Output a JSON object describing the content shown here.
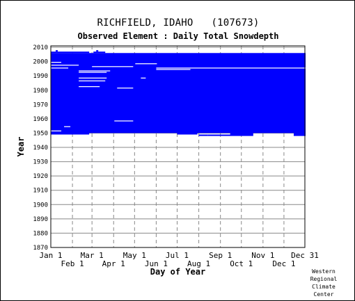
{
  "title": "RICHFIELD, IDAHO   (107673)",
  "subtitle": "Observed Element : Daily Total Snowdepth",
  "credit": [
    "Western",
    "Regional",
    "Climate",
    "Center"
  ],
  "chart_data": {
    "type": "heatmap",
    "title": "RICHFIELD, IDAHO   (107673)",
    "subtitle": "Observed Element : Daily Total Snowdepth",
    "xlabel": "Day of Year",
    "ylabel": "Year",
    "xlim": [
      1,
      365
    ],
    "ylim": [
      1870,
      2011
    ],
    "grid": true,
    "series_color": "#0000ff",
    "y_ticks": [
      1870,
      1880,
      1890,
      1900,
      1910,
      1920,
      1930,
      1940,
      1950,
      1960,
      1970,
      1980,
      1990,
      2000,
      2010
    ],
    "x_ticks_upper": [
      {
        "label": "Jan 1",
        "day": 1
      },
      {
        "label": "Mar 1",
        "day": 60
      },
      {
        "label": "May 1",
        "day": 121
      },
      {
        "label": "Jul 1",
        "day": 182
      },
      {
        "label": "Sep 1",
        "day": 244
      },
      {
        "label": "Nov 1",
        "day": 305
      },
      {
        "label": "Dec 31",
        "day": 365
      }
    ],
    "x_ticks_lower": [
      {
        "label": "Feb 1",
        "day": 32
      },
      {
        "label": "Apr 1",
        "day": 91
      },
      {
        "label": "Jun 1",
        "day": 152
      },
      {
        "label": "Aug 1",
        "day": 213
      },
      {
        "label": "Oct 1",
        "day": 274
      },
      {
        "label": "Dec 1",
        "day": 335
      }
    ],
    "observed_blocks": [
      {
        "year_start": 1950,
        "year_end": 2005,
        "day_start": 1,
        "day_end": 365
      }
    ],
    "missing_gaps": [
      {
        "year": 1999,
        "day_start": 1,
        "day_end": 15
      },
      {
        "year": 1997,
        "day_start": 1,
        "day_end": 40
      },
      {
        "year": 1996,
        "day_start": 60,
        "day_end": 118
      },
      {
        "year": 1995,
        "day_start": 1,
        "day_end": 25
      },
      {
        "year": 1993,
        "day_start": 41,
        "day_end": 85
      },
      {
        "year": 1992,
        "day_start": 41,
        "day_end": 80
      },
      {
        "year": 1988,
        "day_start": 41,
        "day_end": 80
      },
      {
        "year": 1986,
        "day_start": 41,
        "day_end": 78
      },
      {
        "year": 1982,
        "day_start": 41,
        "day_end": 70
      },
      {
        "year": 1981,
        "day_start": 96,
        "day_end": 118
      },
      {
        "year": 1958,
        "day_start": 92,
        "day_end": 118
      },
      {
        "year": 1954,
        "day_start": 20,
        "day_end": 28
      },
      {
        "year": 1951,
        "day_start": 1,
        "day_end": 15
      },
      {
        "year": 1995,
        "day_start": 152,
        "day_end": 365
      },
      {
        "year": 1994,
        "day_start": 152,
        "day_end": 200
      },
      {
        "year": 1988,
        "day_start": 130,
        "day_end": 136
      },
      {
        "year": 1998,
        "day_start": 122,
        "day_end": 152
      }
    ],
    "extra_observed": [
      {
        "year": 2006,
        "day_start": 1,
        "day_end": 55
      },
      {
        "year": 2006,
        "day_start": 62,
        "day_end": 78
      },
      {
        "year": 2007,
        "day_start": 8,
        "day_end": 10
      },
      {
        "year": 2007,
        "day_start": 66,
        "day_end": 68
      },
      {
        "year": 1949,
        "day_start": 1,
        "day_end": 55
      },
      {
        "year": 1949,
        "day_start": 182,
        "day_end": 210
      },
      {
        "year": 1948,
        "day_start": 213,
        "day_end": 225
      },
      {
        "year": 1948,
        "day_start": 226,
        "day_end": 258
      },
      {
        "year": 1949,
        "day_start": 258,
        "day_end": 290
      },
      {
        "year": 1948,
        "day_start": 258,
        "day_end": 290
      },
      {
        "year": 1949,
        "day_start": 349,
        "day_end": 365
      },
      {
        "year": 1948,
        "day_start": 349,
        "day_end": 365
      },
      {
        "year": 1995,
        "day_start": 182,
        "day_end": 195
      },
      {
        "year": 1996,
        "day_start": 182,
        "day_end": 213
      }
    ]
  }
}
